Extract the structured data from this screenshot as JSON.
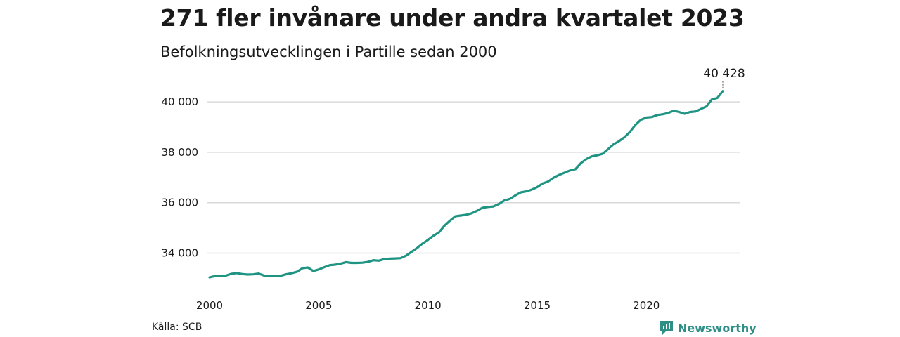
{
  "header": {
    "title": "271 fler invånare under andra kvartalet 2023",
    "subtitle": "Befolkningsutvecklingen i Partille sedan 2000"
  },
  "footer": {
    "source": "Källa: SCB",
    "brand": "Newsworthy"
  },
  "colors": {
    "line": "#1f9483",
    "grid": "#d9d9d9",
    "brand": "#2f8f86"
  },
  "icons": {
    "brand": "newsworthy-logo-icon"
  },
  "chart_data": {
    "type": "line",
    "title": "271 fler invånare under andra kvartalet 2023",
    "subtitle": "Befolkningsutvecklingen i Partille sedan 2000",
    "xlabel": "",
    "ylabel": "",
    "xlim": [
      2000,
      2023.5
    ],
    "ylim": [
      32900,
      40700
    ],
    "grid": "horizontal",
    "xticks": [
      {
        "value": 2000,
        "label": "2000"
      },
      {
        "value": 2005,
        "label": "2005"
      },
      {
        "value": 2010,
        "label": "2010"
      },
      {
        "value": 2015,
        "label": "2015"
      },
      {
        "value": 2020,
        "label": "2020"
      }
    ],
    "yticks": [
      {
        "value": 34000,
        "label": "34 000"
      },
      {
        "value": 36000,
        "label": "36 000"
      },
      {
        "value": 38000,
        "label": "38 000"
      },
      {
        "value": 40000,
        "label": "40 000"
      }
    ],
    "last_value_label": "40 428",
    "series": [
      {
        "name": "",
        "x": [
          2000.0,
          2000.25,
          2000.5,
          2000.75,
          2001.0,
          2001.25,
          2001.5,
          2001.75,
          2002.0,
          2002.25,
          2002.5,
          2002.75,
          2003.0,
          2003.25,
          2003.5,
          2003.75,
          2004.0,
          2004.25,
          2004.5,
          2004.75,
          2005.0,
          2005.25,
          2005.5,
          2005.75,
          2006.0,
          2006.25,
          2006.5,
          2006.75,
          2007.0,
          2007.25,
          2007.5,
          2007.75,
          2008.0,
          2008.25,
          2008.5,
          2008.75,
          2009.0,
          2009.25,
          2009.5,
          2009.75,
          2010.0,
          2010.25,
          2010.5,
          2010.75,
          2011.0,
          2011.25,
          2011.5,
          2011.75,
          2012.0,
          2012.25,
          2012.5,
          2012.75,
          2013.0,
          2013.25,
          2013.5,
          2013.75,
          2014.0,
          2014.25,
          2014.5,
          2014.75,
          2015.0,
          2015.25,
          2015.5,
          2015.75,
          2016.0,
          2016.25,
          2016.5,
          2016.75,
          2017.0,
          2017.25,
          2017.5,
          2017.75,
          2018.0,
          2018.25,
          2018.5,
          2018.75,
          2019.0,
          2019.25,
          2019.5,
          2019.75,
          2020.0,
          2020.25,
          2020.5,
          2020.75,
          2021.0,
          2021.25,
          2021.5,
          2021.75,
          2022.0,
          2022.25,
          2022.5,
          2022.75,
          2023.0,
          2023.25,
          2023.5
        ],
        "values": [
          33040,
          33090,
          33100,
          33110,
          33180,
          33210,
          33170,
          33150,
          33160,
          33190,
          33110,
          33090,
          33100,
          33100,
          33160,
          33200,
          33260,
          33400,
          33430,
          33290,
          33350,
          33440,
          33520,
          33540,
          33580,
          33640,
          33610,
          33610,
          33620,
          33650,
          33720,
          33700,
          33760,
          33780,
          33790,
          33800,
          33900,
          34050,
          34200,
          34380,
          34520,
          34690,
          34820,
          35080,
          35280,
          35460,
          35490,
          35520,
          35580,
          35680,
          35800,
          35830,
          35850,
          35950,
          36090,
          36150,
          36290,
          36410,
          36450,
          36520,
          36620,
          36760,
          36840,
          36990,
          37100,
          37190,
          37280,
          37330,
          37570,
          37730,
          37840,
          37880,
          37940,
          38130,
          38320,
          38440,
          38600,
          38810,
          39090,
          39290,
          39380,
          39400,
          39480,
          39510,
          39560,
          39650,
          39600,
          39530,
          39600,
          39620,
          39720,
          39820,
          40100,
          40157,
          40428
        ]
      }
    ]
  }
}
